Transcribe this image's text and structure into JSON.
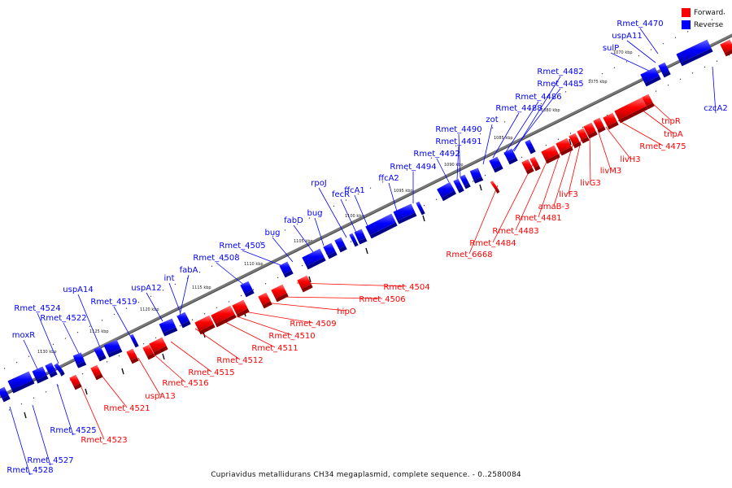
{
  "caption": "Cupriavidus metallidurans CH34 megaplasmid, complete sequence. - 0..2580084",
  "legend": [
    {
      "label": "Forward",
      "color": "#ff0000"
    },
    {
      "label": "Reverse",
      "color": "#0000ff"
    }
  ],
  "colors": {
    "forward": "#ff0000",
    "reverse": "#0000ff",
    "backbone": "#888888"
  },
  "ticks": [
    "1070 kbp",
    "1075 kbp",
    "1080 kbp",
    "1085 kbp",
    "1090 kbp",
    "1095 kbp",
    "1100 kbp",
    "1105 kbp",
    "1110 kbp",
    "1115 kbp",
    "1120 kbp",
    "1125 kbp",
    "1130 kbp"
  ],
  "reverse_labels": [
    "Rmet_4470",
    "uspA11",
    "sulP",
    "Rmet_4482",
    "Rmet_4485",
    "Rmet_4486",
    "Rmet_4488",
    "zot",
    "Rmet_4490",
    "Rmet_4491",
    "Rmet_4492",
    "Rmet_4494",
    "ffcA2",
    "ffcA1",
    "fecR",
    "rpoJ",
    "bug",
    "fabD",
    "bug",
    "Rmet_4505",
    "Rmet_4508",
    "int",
    "fabA",
    "uspA12",
    "Rmet_4519",
    "uspA14",
    "Rmet_4522",
    "Rmet_4524",
    "moxR",
    "Rmet_4525",
    "Rmet_4527",
    "Rmet_4528",
    "czcA2"
  ],
  "forward_labels": [
    "tnpR",
    "tnpA",
    "Rmet_4475",
    "livH3",
    "livM3",
    "livG3",
    "livF3",
    "amaB-3",
    "Rmet_4481",
    "Rmet_4483",
    "Rmet_4484",
    "Rmet_6668",
    "Rmet_4504",
    "Rmet_4506",
    "hipO",
    "Rmet_4509",
    "Rmet_4510",
    "Rmet_4511",
    "Rmet_4512",
    "Rmet_4515",
    "Rmet_4516",
    "uspA13",
    "Rmet_4521",
    "Rmet_4523"
  ]
}
